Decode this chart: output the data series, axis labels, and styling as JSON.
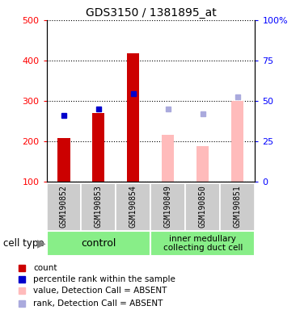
{
  "title": "GDS3150 / 1381895_at",
  "samples": [
    "GSM190852",
    "GSM190853",
    "GSM190854",
    "GSM190849",
    "GSM190850",
    "GSM190851"
  ],
  "bar_values": [
    207,
    270,
    418,
    215,
    188,
    300
  ],
  "bar_present": [
    true,
    true,
    true,
    false,
    false,
    false
  ],
  "percentile_left_values": [
    263,
    280,
    318,
    null,
    null,
    null
  ],
  "rank_absent_left_values": [
    null,
    null,
    null,
    280,
    268,
    310
  ],
  "ylim_left": [
    100,
    500
  ],
  "ylim_right": [
    0,
    100
  ],
  "left_ticks": [
    100,
    200,
    300,
    400,
    500
  ],
  "right_ticks": [
    0,
    25,
    50,
    75,
    100
  ],
  "right_tick_labels": [
    "0",
    "25",
    "50",
    "75",
    "100%"
  ],
  "bar_color_present": "#cc0000",
  "bar_color_absent": "#ffbbbb",
  "percentile_color": "#0000cc",
  "rank_absent_color": "#aaaadd",
  "sample_bg_color": "#cccccc",
  "group_bg_color": "#88ee88",
  "bar_width": 0.35
}
